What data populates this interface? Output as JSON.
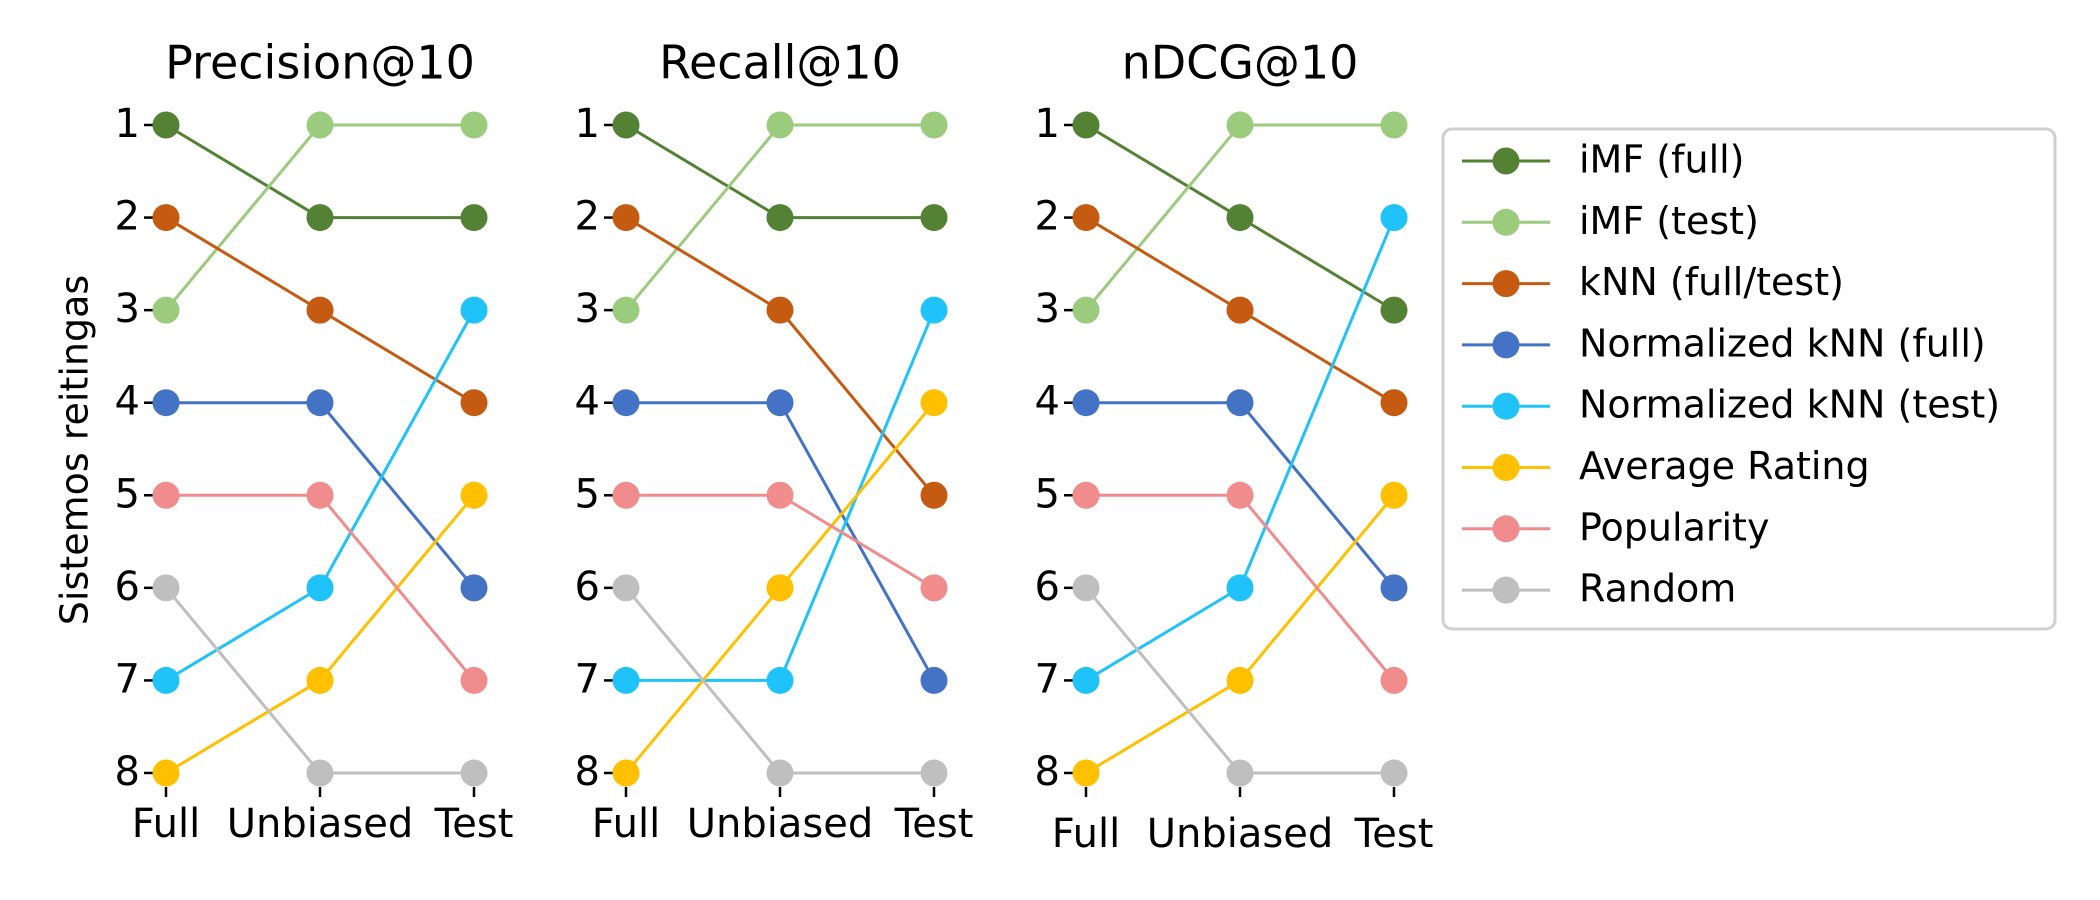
{
  "chart_data": {
    "type": "line",
    "ylabel": "Sistemos reitingas",
    "yticks": [
      "1",
      "2",
      "3",
      "4",
      "5",
      "6",
      "7",
      "8"
    ],
    "ylim": [
      8,
      1
    ],
    "y_inverted": true,
    "legend_placement": "right",
    "grid": false,
    "panels": [
      {
        "title": "Precision@10",
        "categories": [
          "Full",
          "Unbiased",
          "Test"
        ],
        "series": [
          {
            "name": "iMF (full)",
            "values": [
              1,
              2,
              2
            ]
          },
          {
            "name": "iMF (test)",
            "values": [
              3,
              1,
              1
            ]
          },
          {
            "name": "kNN (full/test)",
            "values": [
              2,
              3,
              4
            ]
          },
          {
            "name": "Normalized kNN (full)",
            "values": [
              4,
              4,
              6
            ]
          },
          {
            "name": "Normalized kNN (test)",
            "values": [
              7,
              6,
              3
            ]
          },
          {
            "name": "Average Rating",
            "values": [
              8,
              7,
              5
            ]
          },
          {
            "name": "Popularity",
            "values": [
              5,
              5,
              7
            ]
          },
          {
            "name": "Random",
            "values": [
              6,
              8,
              8
            ]
          }
        ]
      },
      {
        "title": "Recall@10",
        "categories": [
          "Full",
          "Unbiased",
          "Test"
        ],
        "series": [
          {
            "name": "iMF (full)",
            "values": [
              1,
              2,
              2
            ]
          },
          {
            "name": "iMF (test)",
            "values": [
              3,
              1,
              1
            ]
          },
          {
            "name": "kNN (full/test)",
            "values": [
              2,
              3,
              5
            ]
          },
          {
            "name": "Normalized kNN (full)",
            "values": [
              4,
              4,
              7
            ]
          },
          {
            "name": "Normalized kNN (test)",
            "values": [
              7,
              7,
              3
            ]
          },
          {
            "name": "Average Rating",
            "values": [
              8,
              6,
              4
            ]
          },
          {
            "name": "Popularity",
            "values": [
              5,
              5,
              6
            ]
          },
          {
            "name": "Random",
            "values": [
              6,
              8,
              8
            ]
          }
        ]
      },
      {
        "title": "nDCG@10",
        "categories": [
          "Full",
          "Unbiased",
          "Test"
        ],
        "series": [
          {
            "name": "iMF (full)",
            "values": [
              1,
              2,
              3
            ]
          },
          {
            "name": "iMF (test)",
            "values": [
              3,
              1,
              1
            ]
          },
          {
            "name": "kNN (full/test)",
            "values": [
              2,
              3,
              4
            ]
          },
          {
            "name": "Normalized kNN (full)",
            "values": [
              4,
              4,
              6
            ]
          },
          {
            "name": "Normalized kNN (test)",
            "values": [
              7,
              6,
              2
            ]
          },
          {
            "name": "Average Rating",
            "values": [
              8,
              7,
              5
            ]
          },
          {
            "name": "Popularity",
            "values": [
              5,
              5,
              7
            ]
          },
          {
            "name": "Random",
            "values": [
              6,
              8,
              8
            ]
          }
        ]
      }
    ],
    "legend": [
      {
        "name": "iMF (full)",
        "color": "#548235"
      },
      {
        "name": "iMF (test)",
        "color": "#9BCB7C"
      },
      {
        "name": "kNN (full/test)",
        "color": "#C55A11"
      },
      {
        "name": "Normalized kNN (full)",
        "color": "#4472C4"
      },
      {
        "name": "Normalized kNN (test)",
        "color": "#1FC3FA"
      },
      {
        "name": "Average Rating",
        "color": "#FFC000"
      },
      {
        "name": "Popularity",
        "color": "#F08C8C"
      },
      {
        "name": "Random",
        "color": "#BFBFBF"
      }
    ]
  }
}
